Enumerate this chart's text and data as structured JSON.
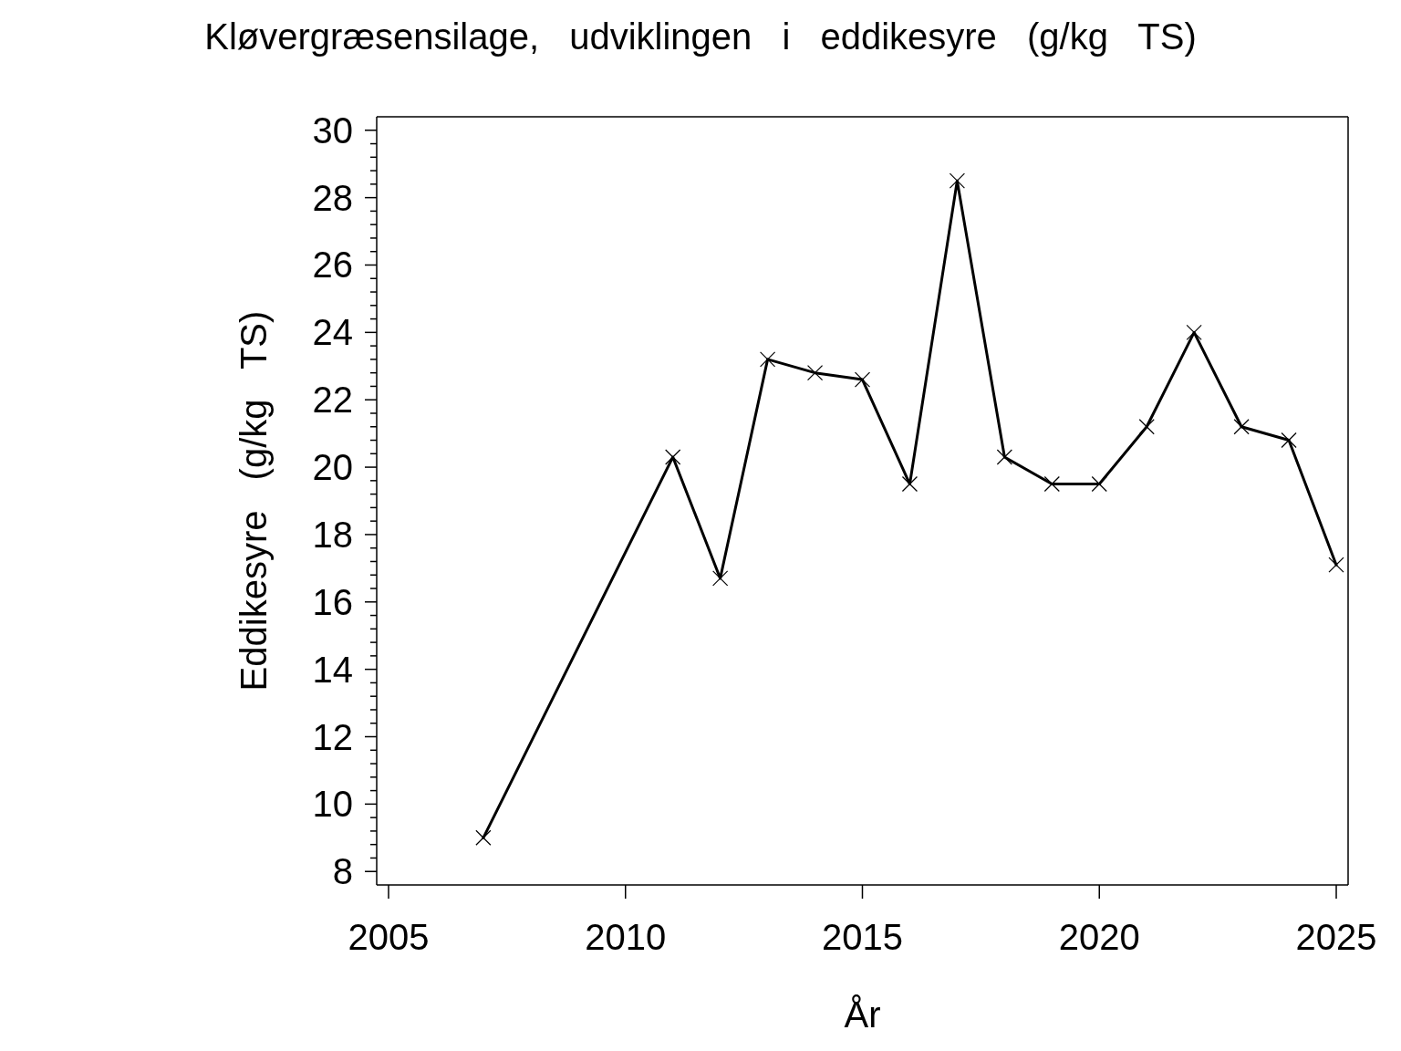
{
  "chart_data": {
    "type": "line",
    "title": "Kløvergræsensilage, udviklingen i eddikesyre (g/kg TS)",
    "xlabel": "År",
    "ylabel": "Eddikesyre (g/kg TS)",
    "x": [
      2007,
      2011,
      2012,
      2013,
      2014,
      2015,
      2016,
      2017,
      2018,
      2019,
      2020,
      2021,
      2022,
      2023,
      2024,
      2025
    ],
    "series": [
      {
        "color": "#000000",
        "values": [
          9.0,
          20.3,
          16.7,
          23.2,
          22.8,
          22.6,
          19.5,
          28.5,
          20.3,
          19.5,
          19.5,
          21.2,
          24.0,
          21.2,
          20.8,
          17.1
        ]
      }
    ],
    "xlim": [
      2004.75,
      2025.25
    ],
    "xticks": [
      2005,
      2010,
      2015,
      2020,
      2025
    ],
    "ylim": [
      7.6,
      30.4
    ],
    "yticks": [
      8,
      {
        "value": 8.4,
        "label": null
      },
      {
        "value": 8.8,
        "label": null
      },
      {
        "value": 9.2,
        "label": null
      },
      {
        "value": 9.6,
        "label": null
      },
      10,
      {
        "value": 10.4,
        "label": null
      },
      {
        "value": 10.8,
        "label": null
      },
      {
        "value": 11.2,
        "label": null
      },
      {
        "value": 11.6,
        "label": null
      },
      12,
      {
        "value": 12.4,
        "label": null
      },
      {
        "value": 12.8,
        "label": null
      },
      {
        "value": 13.2,
        "label": null
      },
      {
        "value": 13.6,
        "label": null
      },
      14,
      {
        "value": 14.4,
        "label": null
      },
      {
        "value": 14.8,
        "label": null
      },
      {
        "value": 15.2,
        "label": null
      },
      {
        "value": 15.6,
        "label": null
      },
      16,
      {
        "value": 16.4,
        "label": null
      },
      {
        "value": 16.8,
        "label": null
      },
      {
        "value": 17.2,
        "label": null
      },
      {
        "value": 17.6,
        "label": null
      },
      18,
      {
        "value": 18.4,
        "label": null
      },
      {
        "value": 18.8,
        "label": null
      },
      {
        "value": 19.2,
        "label": null
      },
      {
        "value": 19.6,
        "label": null
      },
      20,
      {
        "value": 20.4,
        "label": null
      },
      {
        "value": 20.8,
        "label": null
      },
      {
        "value": 21.2,
        "label": null
      },
      {
        "value": 21.6,
        "label": null
      },
      22,
      {
        "value": 22.4,
        "label": null
      },
      {
        "value": 22.8,
        "label": null
      },
      {
        "value": 23.2,
        "label": null
      },
      {
        "value": 23.6,
        "label": null
      },
      24,
      {
        "value": 24.4,
        "label": null
      },
      {
        "value": 24.8,
        "label": null
      },
      {
        "value": 25.2,
        "label": null
      },
      {
        "value": 25.6,
        "label": null
      },
      26,
      {
        "value": 26.4,
        "label": null
      },
      {
        "value": 26.8,
        "label": null
      },
      {
        "value": 27.2,
        "label": null
      },
      {
        "value": 27.6,
        "label": null
      },
      28,
      {
        "value": 28.4,
        "label": null
      },
      {
        "value": 28.8,
        "label": null
      },
      {
        "value": 29.2,
        "label": null
      },
      {
        "value": 29.6,
        "label": null
      },
      30
    ],
    "marker": "cross",
    "line_style": "solid"
  }
}
